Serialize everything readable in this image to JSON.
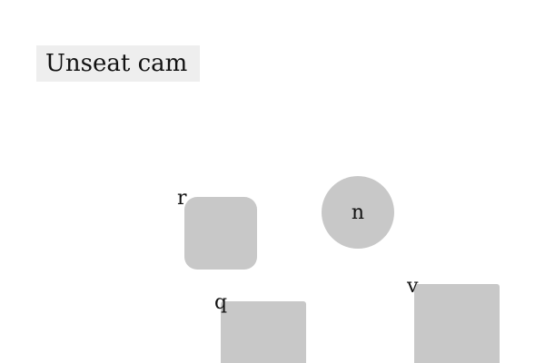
{
  "title": {
    "text": "Unseat cam",
    "background": "#eeeeee"
  },
  "shapes": {
    "fill": "#c8c8c8",
    "r": {
      "label": "r",
      "shape": "rounded-square"
    },
    "n": {
      "label": "n",
      "shape": "circle"
    },
    "q": {
      "label": "q",
      "shape": "rectangle"
    },
    "v": {
      "label": "v",
      "shape": "rectangle"
    }
  }
}
